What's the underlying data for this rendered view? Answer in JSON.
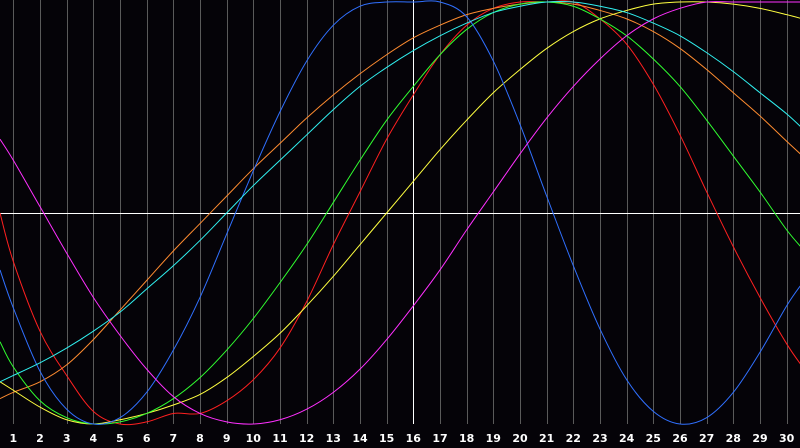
{
  "chart_data": {
    "type": "line",
    "title": "",
    "xlabel": "",
    "ylabel": "",
    "x": [
      1,
      2,
      3,
      4,
      5,
      6,
      7,
      8,
      9,
      10,
      11,
      12,
      13,
      14,
      15,
      16,
      17,
      18,
      19,
      20,
      21,
      22,
      23,
      24,
      25,
      26,
      27,
      28,
      29,
      30
    ],
    "tick_labels": [
      "1",
      "2",
      "3",
      "4",
      "5",
      "6",
      "7",
      "8",
      "9",
      "10",
      "11",
      "12",
      "13",
      "14",
      "15",
      "16",
      "17",
      "18",
      "19",
      "20",
      "21",
      "22",
      "23",
      "24",
      "25",
      "26",
      "27",
      "28",
      "29",
      "30"
    ],
    "ylim": [
      -1,
      1
    ],
    "grid": true,
    "legend": "none",
    "background_color": "#050308",
    "grid_color": "#5a5a5a",
    "axis_color": "#ffffff",
    "tick_label_color": "#ffffff",
    "series": [
      {
        "color": "#ff2020",
        "x": [
          0.5,
          1,
          2,
          3,
          4,
          5,
          6,
          7,
          8,
          9,
          10,
          11,
          12,
          13,
          14,
          15,
          16,
          17,
          18,
          19,
          20,
          21,
          22,
          23,
          24,
          25,
          26,
          27,
          28,
          29,
          30,
          30.6
        ],
        "values": [
          0.0,
          -0.23,
          -0.56,
          -0.77,
          -0.94,
          -1.0,
          -0.99,
          -0.95,
          -0.95,
          -0.89,
          -0.79,
          -0.64,
          -0.42,
          -0.15,
          0.1,
          0.35,
          0.56,
          0.75,
          0.89,
          0.97,
          1.0,
          1.0,
          1.0,
          0.92,
          0.8,
          0.61,
          0.37,
          0.1,
          -0.16,
          -0.4,
          -0.62,
          -0.73
        ]
      },
      {
        "color": "#ff8c30",
        "x": [
          0.5,
          1,
          2,
          3,
          4,
          5,
          6,
          7,
          8,
          9,
          10,
          11,
          12,
          13,
          14,
          15,
          16,
          17,
          18,
          19,
          20,
          21,
          22,
          23,
          24,
          25,
          26,
          27,
          28,
          29,
          30,
          30.6
        ],
        "values": [
          -0.88,
          -0.85,
          -0.8,
          -0.72,
          -0.6,
          -0.46,
          -0.32,
          -0.18,
          -0.05,
          0.08,
          0.21,
          0.33,
          0.45,
          0.56,
          0.66,
          0.75,
          0.83,
          0.89,
          0.94,
          0.97,
          0.99,
          1.0,
          0.99,
          0.96,
          0.92,
          0.86,
          0.78,
          0.68,
          0.57,
          0.46,
          0.34,
          0.27
        ]
      },
      {
        "color": "#ffff40",
        "x": [
          0.5,
          1,
          2,
          3,
          4,
          5,
          6,
          7,
          8,
          9,
          10,
          11,
          12,
          13,
          14,
          15,
          16,
          17,
          18,
          19,
          20,
          21,
          22,
          23,
          24,
          25,
          26,
          27,
          28,
          29,
          30,
          30.6
        ],
        "values": [
          -0.8,
          -0.84,
          -0.92,
          -0.98,
          -1.0,
          -0.98,
          -0.95,
          -0.91,
          -0.86,
          -0.78,
          -0.68,
          -0.57,
          -0.44,
          -0.3,
          -0.15,
          0.0,
          0.15,
          0.3,
          0.44,
          0.57,
          0.68,
          0.78,
          0.86,
          0.92,
          0.96,
          0.99,
          1.0,
          1.0,
          0.99,
          0.97,
          0.94,
          0.92
        ]
      },
      {
        "color": "#30ff30",
        "x": [
          0.5,
          1,
          2,
          3,
          4,
          5,
          6,
          7,
          8,
          9,
          10,
          11,
          12,
          13,
          14,
          15,
          16,
          17,
          18,
          19,
          20,
          21,
          22,
          23,
          24,
          25,
          26,
          27,
          28,
          29,
          30,
          30.6
        ],
        "values": [
          -0.61,
          -0.73,
          -0.89,
          -0.97,
          -1.0,
          -0.99,
          -0.95,
          -0.88,
          -0.78,
          -0.65,
          -0.5,
          -0.33,
          -0.15,
          0.05,
          0.25,
          0.44,
          0.6,
          0.75,
          0.87,
          0.95,
          0.99,
          1.0,
          0.98,
          0.92,
          0.84,
          0.73,
          0.6,
          0.44,
          0.27,
          0.1,
          -0.08,
          -0.17
        ]
      },
      {
        "color": "#3070ff",
        "x": [
          0.5,
          1,
          2,
          3,
          4,
          5,
          6,
          7,
          8,
          9,
          10,
          11,
          12,
          13,
          14,
          15,
          16,
          17,
          18,
          19,
          20,
          21,
          22,
          23,
          24,
          25,
          26,
          27,
          28,
          29,
          30,
          30.6
        ],
        "values": [
          -0.27,
          -0.45,
          -0.75,
          -0.93,
          -1.0,
          -0.97,
          -0.85,
          -0.65,
          -0.4,
          -0.1,
          0.2,
          0.48,
          0.72,
          0.89,
          0.98,
          1.0,
          1.0,
          1.0,
          0.93,
          0.72,
          0.42,
          0.08,
          -0.25,
          -0.55,
          -0.79,
          -0.94,
          -1.0,
          -0.97,
          -0.85,
          -0.66,
          -0.44,
          -0.33
        ]
      },
      {
        "color": "#ff30ff",
        "x": [
          0.5,
          1,
          2,
          3,
          4,
          5,
          6,
          7,
          8,
          9,
          10,
          11,
          12,
          13,
          14,
          15,
          16,
          17,
          18,
          19,
          20,
          21,
          22,
          23,
          24,
          25,
          26,
          27,
          28,
          29,
          30,
          30.6
        ],
        "values": [
          0.35,
          0.25,
          0.03,
          -0.19,
          -0.4,
          -0.58,
          -0.74,
          -0.87,
          -0.95,
          -0.99,
          -1.0,
          -0.98,
          -0.93,
          -0.85,
          -0.74,
          -0.6,
          -0.44,
          -0.27,
          -0.08,
          0.1,
          0.28,
          0.45,
          0.6,
          0.73,
          0.84,
          0.92,
          0.97,
          1.0,
          1.0,
          1.0,
          1.0,
          1.0
        ]
      },
      {
        "color": "#30f0f0",
        "x": [
          0.5,
          1,
          2,
          3,
          4,
          5,
          6,
          7,
          8,
          9,
          10,
          11,
          12,
          13,
          14,
          15,
          16,
          17,
          18,
          19,
          20,
          21,
          22,
          23,
          24,
          25,
          26,
          27,
          28,
          29,
          30,
          30.6
        ],
        "values": [
          -0.8,
          -0.77,
          -0.71,
          -0.64,
          -0.56,
          -0.47,
          -0.36,
          -0.25,
          -0.13,
          0.0,
          0.13,
          0.25,
          0.37,
          0.49,
          0.6,
          0.69,
          0.77,
          0.84,
          0.9,
          0.95,
          0.98,
          1.0,
          1.0,
          0.98,
          0.95,
          0.9,
          0.84,
          0.76,
          0.67,
          0.57,
          0.47,
          0.4
        ]
      }
    ]
  }
}
